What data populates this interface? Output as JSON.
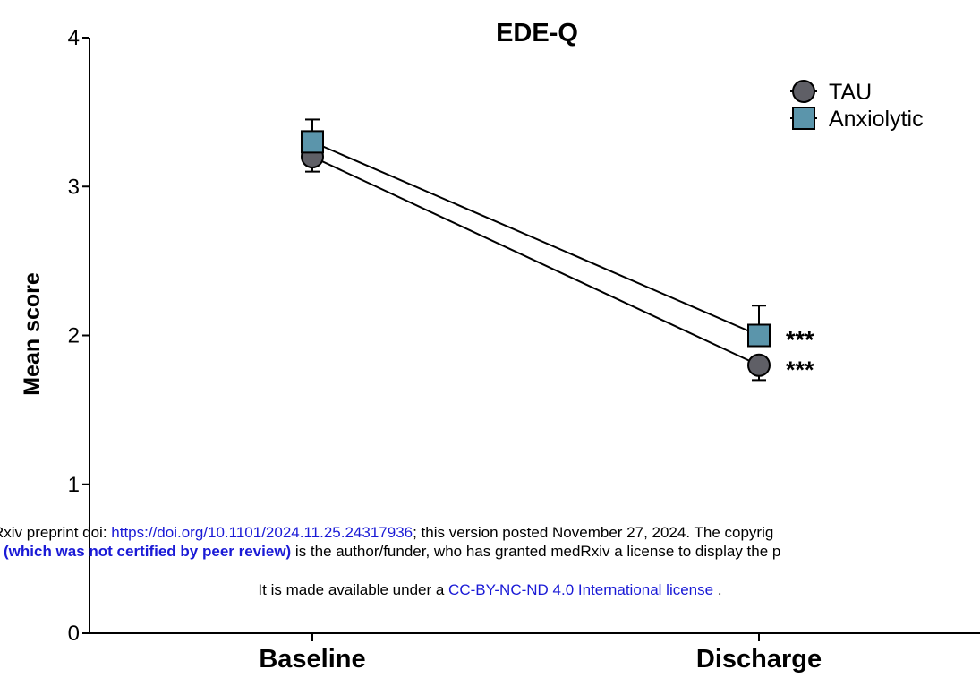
{
  "chart_data": {
    "type": "line",
    "title": "EDE-Q",
    "ylabel": "Mean score",
    "xlabel": "",
    "categories": [
      "Baseline",
      "Discharge"
    ],
    "ylim": [
      0,
      4
    ],
    "yticks": [
      "0",
      "1",
      "2",
      "3",
      "4"
    ],
    "legend_position": "top-right",
    "series": [
      {
        "name": "TAU",
        "values": [
          3.2,
          1.8
        ],
        "error": [
          0.1,
          0.1
        ],
        "marker": "circle",
        "color": "#5f5f66",
        "error_direction": "down"
      },
      {
        "name": "Anxiolytic",
        "values": [
          3.3,
          2.0
        ],
        "error": [
          0.15,
          0.2
        ],
        "marker": "square",
        "color": "#5b95ab",
        "error_direction": "up"
      }
    ],
    "annotations": [
      "***",
      "***"
    ],
    "grid": false
  },
  "footer": {
    "line1_pre": "Rxiv preprint doi: ",
    "line1_link": "https://doi.org/10.1101/2024.11.25.24317936",
    "line1_post": "; this version posted November 27, 2024. The copyrig",
    "line2_bold": "(which was not certified by peer review)",
    "line2_post": " is the author/funder, who has granted medRxiv a license to display the p",
    "line3_pre": "It is made available under a ",
    "line3_link": "CC-BY-NC-ND 4.0 International license",
    "line3_post": " ."
  }
}
